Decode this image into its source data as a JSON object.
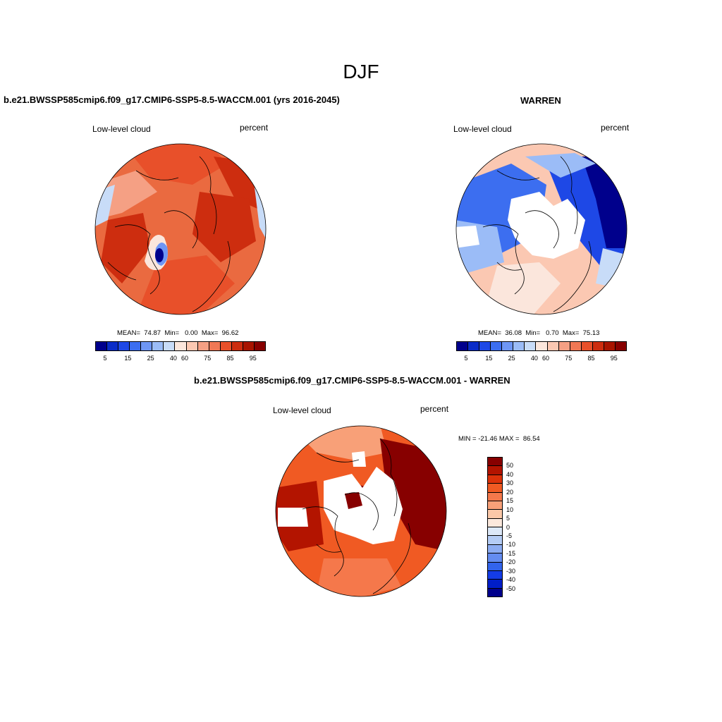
{
  "title": "DJF",
  "panels": {
    "model": {
      "header": "b.e21.BWSSP585cmip6.f09_g17.CMIP6-SSP5-8.5-WACCM.001 (yrs 2016-2045)",
      "left_label": "Low-level cloud",
      "right_label": "percent",
      "stats": "MEAN=  74.87  Min=   0.00  Max=  96.62"
    },
    "obs": {
      "header": "WARREN",
      "left_label": "Low-level cloud",
      "right_label": "percent",
      "stats": "MEAN=  36.08  Min=   0.70  Max=  75.13"
    },
    "diff": {
      "header": "b.e21.BWSSP585cmip6.f09_g17.CMIP6-SSP5-8.5-WACCM.001 - WARREN",
      "left_label": "Low-level cloud",
      "right_label": "percent",
      "stats": "MIN = -21.46 MAX =  86.54"
    }
  },
  "colorbar_abs": {
    "labels": [
      "5",
      "15",
      "25",
      "40",
      "60",
      "75",
      "85",
      "95"
    ],
    "colors": [
      "#00008c",
      "#0a2cc8",
      "#1e48e6",
      "#3c6ef0",
      "#6e96f5",
      "#9bbcf7",
      "#c8dcf8",
      "#fbe6dc",
      "#fbc8b2",
      "#f5a084",
      "#f07855",
      "#e8502a",
      "#cd2d0f",
      "#a81400",
      "#870000"
    ]
  },
  "colorbar_diff": {
    "labels": [
      "50",
      "40",
      "30",
      "20",
      "15",
      "10",
      "5",
      "0",
      "-5",
      "-10",
      "-15",
      "-20",
      "-30",
      "-40",
      "-50"
    ],
    "colors": [
      "#870000",
      "#b31400",
      "#dc320a",
      "#f05a23",
      "#f5784b",
      "#f8a078",
      "#fbc8a8",
      "#fbe8dc",
      "#dce8f8",
      "#b4ccf5",
      "#8cacf2",
      "#648cf0",
      "#3264ec",
      "#143ce6",
      "#001ec8",
      "#00008c"
    ]
  }
}
